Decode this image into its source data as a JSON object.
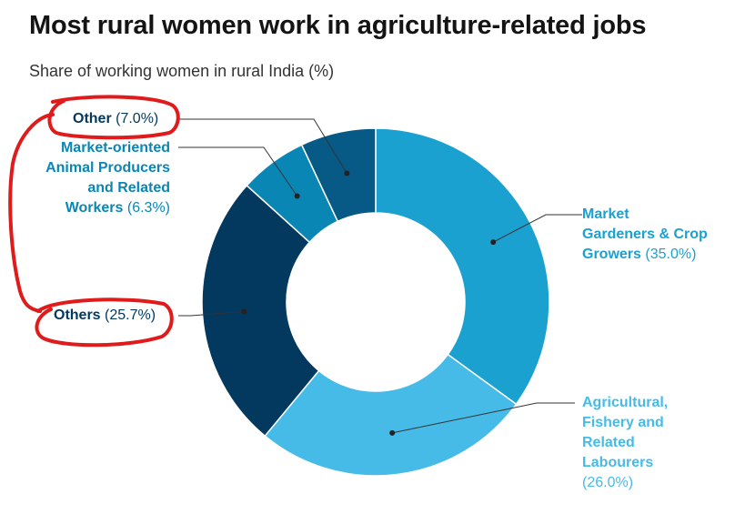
{
  "title": "Most rural women work in agriculture-related jobs",
  "subtitle": "Share of working women in rural India (%)",
  "chart_data": {
    "type": "pie",
    "variant": "donut",
    "slices": [
      {
        "name": "Market Gardeners & Crop Growers",
        "value": 35.0,
        "pct_label": "(35.0%)",
        "color": "#1aa1d0",
        "label_lines": [
          "Market",
          "Gardeners & Crop",
          "Growers"
        ]
      },
      {
        "name": "Agricultural, Fishery and Related Labourers",
        "value": 26.0,
        "pct_label": "(26.0%)",
        "color": "#46bbe8",
        "label_lines": [
          "Agricultural,",
          "Fishery and",
          "Related",
          "Labourers"
        ]
      },
      {
        "name": "Others",
        "value": 25.7,
        "pct_label": "(25.7%)",
        "color": "#03385f",
        "label_lines": [
          "Others"
        ]
      },
      {
        "name": "Market-oriented Animal Producers and Related Workers",
        "value": 6.3,
        "pct_label": "(6.3%)",
        "color": "#0a86b5",
        "label_lines": [
          "Market-oriented",
          "Animal Producers",
          "and Related",
          "Workers"
        ]
      },
      {
        "name": "Other",
        "value": 7.0,
        "pct_label": "(7.0%)",
        "color": "#075a86",
        "label_lines": [
          "Other"
        ]
      }
    ]
  },
  "annotation": {
    "type": "hand-drawn red circles around 'Other' and 'Others' labels",
    "color": "#e01b1b"
  }
}
